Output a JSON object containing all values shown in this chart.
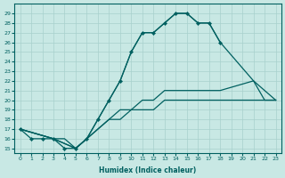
{
  "xlabel": "Humidex (Indice chaleur)",
  "xlim": [
    -0.5,
    23.5
  ],
  "ylim": [
    14.5,
    30.0
  ],
  "xticks": [
    0,
    1,
    2,
    3,
    4,
    5,
    6,
    7,
    8,
    9,
    10,
    11,
    12,
    13,
    14,
    15,
    16,
    17,
    18,
    19,
    20,
    21,
    22,
    23
  ],
  "yticks": [
    15,
    16,
    17,
    18,
    19,
    20,
    21,
    22,
    23,
    24,
    25,
    26,
    27,
    28,
    29
  ],
  "bg_color": "#c8e8e4",
  "grid_color": "#a8d0cc",
  "line_color": "#006060",
  "lines": [
    {
      "x": [
        0,
        1,
        2,
        3,
        4,
        5,
        6,
        7,
        8,
        9,
        10,
        11,
        12,
        13,
        14,
        15,
        16,
        17,
        18
      ],
      "y": [
        17,
        16,
        16,
        16,
        15,
        15,
        16,
        18,
        20,
        22,
        25,
        27,
        27,
        28,
        29,
        29,
        28,
        28,
        26
      ],
      "marker": true
    },
    {
      "x": [
        0,
        3,
        4,
        5,
        6,
        7,
        8,
        9,
        10,
        11,
        12,
        13,
        14,
        15,
        16,
        17,
        18,
        21,
        22,
        23
      ],
      "y": [
        17,
        16,
        16,
        15,
        16,
        18,
        20,
        22,
        25,
        27,
        27,
        28,
        29,
        29,
        28,
        28,
        26,
        22,
        21,
        20
      ],
      "marker": false
    },
    {
      "x": [
        0,
        3,
        5,
        6,
        7,
        8,
        9,
        10,
        11,
        12,
        13,
        14,
        15,
        16,
        17,
        18,
        21,
        22,
        23
      ],
      "y": [
        17,
        16,
        15,
        16,
        17,
        18,
        19,
        19,
        20,
        20,
        21,
        21,
        21,
        21,
        21,
        21,
        22,
        20,
        20
      ],
      "marker": false
    },
    {
      "x": [
        0,
        3,
        5,
        6,
        7,
        8,
        9,
        10,
        11,
        12,
        13,
        14,
        15,
        16,
        17,
        18,
        21,
        22,
        23
      ],
      "y": [
        17,
        16,
        15,
        16,
        17,
        18,
        18,
        19,
        19,
        19,
        20,
        20,
        20,
        20,
        20,
        20,
        20,
        20,
        20
      ],
      "marker": false
    }
  ]
}
